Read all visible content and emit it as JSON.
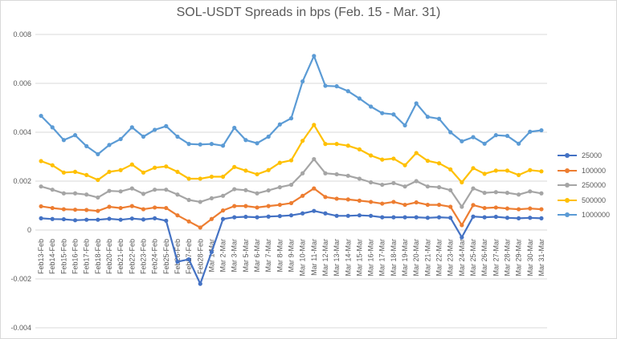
{
  "chart_data": {
    "type": "line",
    "title": "SOL-USDT Spreads in bps (Feb. 15 - Mar. 31)",
    "xlabel": "",
    "ylabel": "",
    "ylim": [
      -0.004,
      0.008
    ],
    "yticks": [
      "-0.004",
      "-0.002",
      "0",
      "0.002",
      "0.004",
      "0.006",
      "0.008"
    ],
    "grid": true,
    "legend_position": "right",
    "categories": [
      "Feb13-Feb",
      "Feb14-Feb",
      "Feb15-Feb",
      "Feb16-Feb",
      "Feb17-Feb",
      "Feb18-Feb",
      "Feb20-Feb",
      "Feb21-Feb",
      "Feb22-Feb",
      "Feb23-Feb",
      "Feb24-Feb",
      "Feb25-Feb",
      "Feb26-Feb",
      "Feb27-Feb",
      "Feb28-Feb",
      "Mar 1-Mar",
      "Mar 2-Mar",
      "Mar 3-Mar",
      "Mar 5-Mar",
      "Mar 6-Mar",
      "Mar 7-Mar",
      "Mar 8-Mar",
      "Mar 9-Mar",
      "Mar 10-Mar",
      "Mar 11-Mar",
      "Mar 12-Mar",
      "Mar 13-Mar",
      "Mar 14-Mar",
      "Mar 15-Mar",
      "Mar 16-Mar",
      "Mar 17-Mar",
      "Mar 18-Mar",
      "Mar 19-Mar",
      "Mar 20-Mar",
      "Mar 21-Mar",
      "Mar 22-Mar",
      "Mar 23-Mar",
      "Mar 24-Mar",
      "Mar 25-Mar",
      "Mar 26-Mar",
      "Mar 27-Mar",
      "Mar 28-Mar",
      "Mar 29-Mar",
      "Mar 30-Mar",
      "Mar 31-Mar"
    ],
    "series": [
      {
        "name": "25000",
        "color": "#4472C4",
        "values": [
          0.00048,
          0.00045,
          0.00044,
          0.0004,
          0.00042,
          0.00042,
          0.00046,
          0.00042,
          0.00047,
          0.00043,
          0.00048,
          0.00038,
          -0.0013,
          -0.0012,
          -0.0022,
          -0.0009,
          0.00045,
          0.00052,
          0.00054,
          0.00052,
          0.00055,
          0.00057,
          0.0006,
          0.00068,
          0.00078,
          0.00068,
          0.00058,
          0.00058,
          0.0006,
          0.00058,
          0.00052,
          0.00052,
          0.00052,
          0.00052,
          0.0005,
          0.00052,
          0.0005,
          -0.0003,
          0.00055,
          0.00052,
          0.00054,
          0.0005,
          0.00048,
          0.0005,
          0.00048
        ]
      },
      {
        "name": "100000",
        "color": "#ED7D31",
        "values": [
          0.00097,
          0.0009,
          0.00085,
          0.00083,
          0.00082,
          0.00078,
          0.00095,
          0.0009,
          0.00098,
          0.00085,
          0.00092,
          0.0009,
          0.0006,
          0.00035,
          0.0001,
          0.00045,
          0.0008,
          0.00098,
          0.00098,
          0.00092,
          0.00098,
          0.00103,
          0.0011,
          0.0014,
          0.0017,
          0.00135,
          0.00128,
          0.00125,
          0.0012,
          0.00115,
          0.00108,
          0.00115,
          0.00103,
          0.00113,
          0.00103,
          0.00103,
          0.00095,
          0.0002,
          0.00102,
          0.0009,
          0.00092,
          0.00088,
          0.00085,
          0.00088,
          0.00085
        ]
      },
      {
        "name": "250000",
        "color": "#A5A5A5",
        "values": [
          0.00178,
          0.00165,
          0.0015,
          0.0015,
          0.00145,
          0.00133,
          0.0016,
          0.00158,
          0.0017,
          0.00148,
          0.00165,
          0.00165,
          0.00145,
          0.00123,
          0.00115,
          0.0013,
          0.0014,
          0.00167,
          0.00163,
          0.0015,
          0.00162,
          0.00175,
          0.00185,
          0.00232,
          0.0029,
          0.00232,
          0.00228,
          0.00222,
          0.0021,
          0.00195,
          0.00185,
          0.00192,
          0.00178,
          0.002,
          0.00178,
          0.00175,
          0.00163,
          0.00095,
          0.0017,
          0.00152,
          0.00155,
          0.00152,
          0.00145,
          0.00158,
          0.0015
        ]
      },
      {
        "name": "500000",
        "color": "#FFC000",
        "values": [
          0.00282,
          0.00265,
          0.00235,
          0.00238,
          0.00225,
          0.00205,
          0.00238,
          0.00245,
          0.00268,
          0.00235,
          0.00255,
          0.0026,
          0.00238,
          0.0021,
          0.0021,
          0.00218,
          0.00218,
          0.00258,
          0.00243,
          0.00228,
          0.00245,
          0.00275,
          0.00285,
          0.00365,
          0.0043,
          0.00352,
          0.00352,
          0.00345,
          0.0033,
          0.00305,
          0.00288,
          0.00292,
          0.00265,
          0.00315,
          0.00283,
          0.00273,
          0.00248,
          0.00195,
          0.00253,
          0.0023,
          0.00243,
          0.00243,
          0.00225,
          0.00245,
          0.0024
        ]
      },
      {
        "name": "1000000",
        "color": "#5B9BD5",
        "values": [
          0.00467,
          0.0042,
          0.00368,
          0.00388,
          0.00343,
          0.0031,
          0.00348,
          0.00372,
          0.0042,
          0.00382,
          0.0041,
          0.00425,
          0.00382,
          0.00352,
          0.0035,
          0.00352,
          0.00345,
          0.00418,
          0.00368,
          0.00355,
          0.00382,
          0.00432,
          0.00457,
          0.00608,
          0.00712,
          0.0059,
          0.00588,
          0.00568,
          0.00538,
          0.00505,
          0.00478,
          0.00473,
          0.00428,
          0.00518,
          0.00463,
          0.00455,
          0.004,
          0.00363,
          0.0038,
          0.00353,
          0.00388,
          0.00385,
          0.00353,
          0.00402,
          0.00408
        ]
      }
    ]
  }
}
